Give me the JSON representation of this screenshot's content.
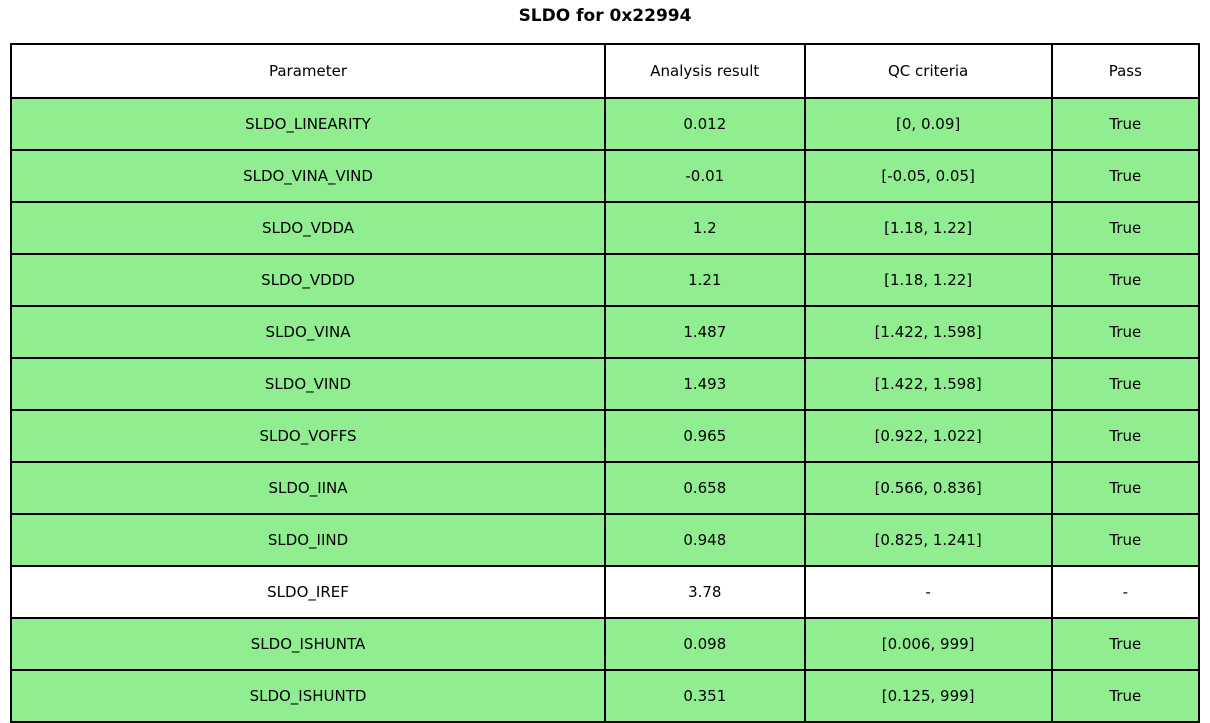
{
  "colors": {
    "pass_row_green": "#90EE90",
    "neutral_row_white": "#ffffff",
    "grid_border": "#000000",
    "text": "#000000"
  },
  "chart_data": {
    "type": "table",
    "title": "SLDO for 0x22994",
    "columns": [
      "Parameter",
      "Analysis result",
      "QC criteria",
      "Pass"
    ],
    "rows": [
      {
        "parameter": "SLDO_LINEARITY",
        "result": "0.012",
        "criteria": "[0, 0.09]",
        "pass": "True",
        "state": "pass"
      },
      {
        "parameter": "SLDO_VINA_VIND",
        "result": "-0.01",
        "criteria": "[-0.05, 0.05]",
        "pass": "True",
        "state": "pass"
      },
      {
        "parameter": "SLDO_VDDA",
        "result": "1.2",
        "criteria": "[1.18, 1.22]",
        "pass": "True",
        "state": "pass"
      },
      {
        "parameter": "SLDO_VDDD",
        "result": "1.21",
        "criteria": "[1.18, 1.22]",
        "pass": "True",
        "state": "pass"
      },
      {
        "parameter": "SLDO_VINA",
        "result": "1.487",
        "criteria": "[1.422, 1.598]",
        "pass": "True",
        "state": "pass"
      },
      {
        "parameter": "SLDO_VIND",
        "result": "1.493",
        "criteria": "[1.422, 1.598]",
        "pass": "True",
        "state": "pass"
      },
      {
        "parameter": "SLDO_VOFFS",
        "result": "0.965",
        "criteria": "[0.922, 1.022]",
        "pass": "True",
        "state": "pass"
      },
      {
        "parameter": "SLDO_IINA",
        "result": "0.658",
        "criteria": "[0.566, 0.836]",
        "pass": "True",
        "state": "pass"
      },
      {
        "parameter": "SLDO_IIND",
        "result": "0.948",
        "criteria": "[0.825, 1.241]",
        "pass": "True",
        "state": "pass"
      },
      {
        "parameter": "SLDO_IREF",
        "result": "3.78",
        "criteria": "-",
        "pass": "-",
        "state": "neutral"
      },
      {
        "parameter": "SLDO_ISHUNTA",
        "result": "0.098",
        "criteria": "[0.006, 999]",
        "pass": "True",
        "state": "pass"
      },
      {
        "parameter": "SLDO_ISHUNTD",
        "result": "0.351",
        "criteria": "[0.125, 999]",
        "pass": "True",
        "state": "pass"
      }
    ]
  }
}
